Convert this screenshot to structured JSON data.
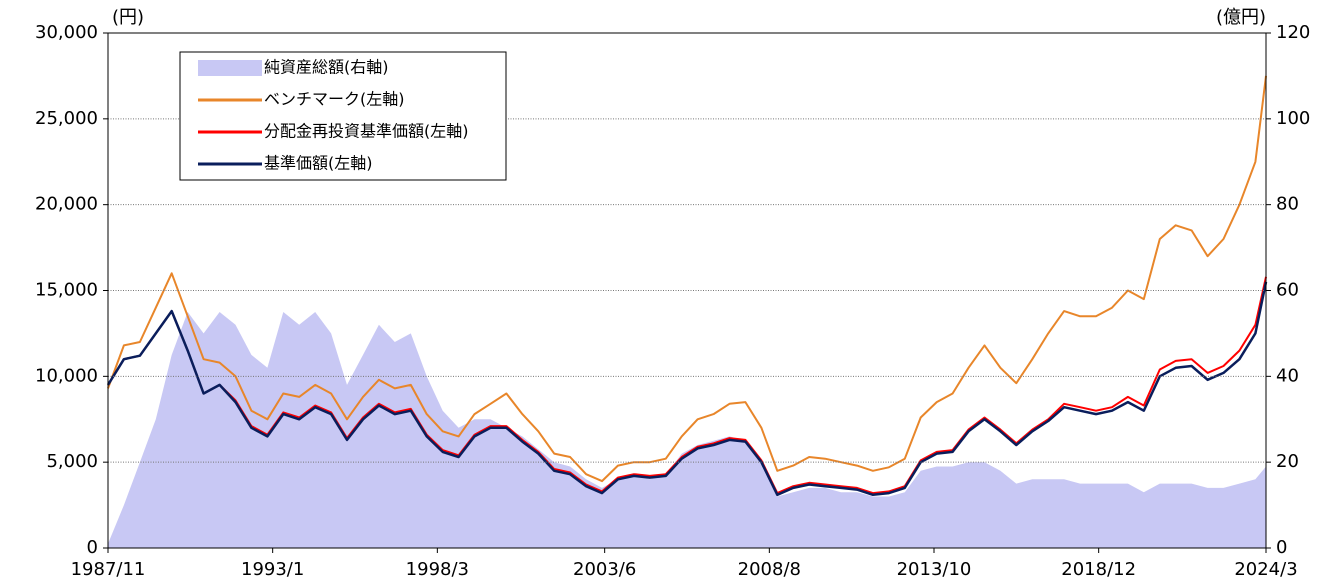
{
  "chart_data": {
    "type": "line",
    "y_unit": "(円)",
    "y2_unit": "(億円)",
    "x": [
      "1987/11",
      "1988/5",
      "1988/11",
      "1989/5",
      "1989/11",
      "1990/5",
      "1990/11",
      "1991/5",
      "1991/11",
      "1992/5",
      "1992/11",
      "1993/5",
      "1993/11",
      "1994/5",
      "1994/11",
      "1995/5",
      "1995/11",
      "1996/5",
      "1996/11",
      "1997/5",
      "1997/11",
      "1998/5",
      "1998/11",
      "1999/5",
      "1999/11",
      "2000/5",
      "2000/11",
      "2001/5",
      "2001/11",
      "2002/5",
      "2002/11",
      "2003/5",
      "2003/11",
      "2004/5",
      "2004/11",
      "2005/5",
      "2005/11",
      "2006/5",
      "2006/11",
      "2007/5",
      "2007/11",
      "2008/5",
      "2008/11",
      "2009/5",
      "2009/11",
      "2010/5",
      "2010/11",
      "2011/5",
      "2011/11",
      "2012/5",
      "2012/11",
      "2013/5",
      "2013/11",
      "2014/5",
      "2014/11",
      "2015/5",
      "2015/11",
      "2016/5",
      "2016/11",
      "2017/5",
      "2017/11",
      "2018/5",
      "2018/11",
      "2019/5",
      "2019/11",
      "2020/5",
      "2020/11",
      "2021/5",
      "2021/11",
      "2022/5",
      "2022/11",
      "2023/5",
      "2023/11",
      "2024/3"
    ],
    "xticks": [
      "1987/11",
      "1993/1",
      "1998/3",
      "2003/6",
      "2008/8",
      "2013/10",
      "2018/12",
      "2024/3"
    ],
    "ylim": [
      0,
      30000
    ],
    "yticks": [
      0,
      {
        "value": 5000,
        "label": "5,000"
      },
      {
        "value": 10000,
        "label": "10,000"
      },
      {
        "value": 15000,
        "label": "15,000"
      },
      {
        "value": 20000,
        "label": "20,000"
      },
      {
        "value": 25000,
        "label": "25,000"
      },
      {
        "value": 30000,
        "label": "30,000"
      }
    ],
    "y2lim": [
      0,
      120
    ],
    "y2ticks": [
      0,
      20,
      40,
      60,
      80,
      100,
      120
    ],
    "grid": true,
    "legend": "upper left",
    "series": [
      {
        "name": "純資産総額(右軸)",
        "style": "area",
        "axis": "y2",
        "color": "#c8c8f4",
        "values": [
          1,
          10,
          20,
          30,
          45,
          55,
          50,
          55,
          52,
          45,
          42,
          55,
          52,
          55,
          50,
          38,
          45,
          52,
          48,
          50,
          40,
          32,
          28,
          30,
          30,
          28,
          26,
          23,
          20,
          19,
          16,
          14,
          16,
          17,
          16,
          17,
          22,
          24,
          25,
          26,
          25,
          20,
          12,
          13,
          14,
          14,
          13,
          13,
          12,
          12,
          13,
          18,
          19,
          19,
          20,
          20,
          18,
          15,
          16,
          16,
          16,
          15,
          15,
          15,
          15,
          13,
          15,
          15,
          15,
          14,
          14,
          15,
          16,
          19
        ]
      },
      {
        "name": "ベンチマーク(左軸)",
        "style": "line",
        "color": "#e8862a",
        "values": [
          9300,
          11800,
          12000,
          14000,
          16000,
          13500,
          11000,
          10800,
          10000,
          8000,
          7500,
          9000,
          8800,
          9500,
          9000,
          7500,
          8800,
          9800,
          9300,
          9500,
          7800,
          6800,
          6500,
          7800,
          8400,
          9000,
          7800,
          6800,
          5500,
          5300,
          4300,
          3900,
          4800,
          5000,
          5000,
          5200,
          6500,
          7500,
          7800,
          8400,
          8500,
          7000,
          4500,
          4800,
          5300,
          5200,
          5000,
          4800,
          4500,
          4700,
          5200,
          7600,
          8500,
          9000,
          10500,
          11800,
          10500,
          9600,
          11000,
          12500,
          13800,
          13500,
          13500,
          14000,
          15000,
          14500,
          18000,
          18800,
          18500,
          17000,
          18000,
          20000,
          22500,
          27500
        ]
      },
      {
        "name": "分配金再投資基準価額(左軸)",
        "style": "line",
        "color": "#ff0000",
        "values": [
          9500,
          11000,
          11200,
          12500,
          13800,
          11500,
          9000,
          9500,
          8600,
          7100,
          6600,
          7900,
          7600,
          8300,
          7900,
          6400,
          7600,
          8400,
          7900,
          8100,
          6600,
          5700,
          5400,
          6600,
          7100,
          7100,
          6300,
          5600,
          4600,
          4400,
          3700,
          3300,
          4100,
          4300,
          4200,
          4300,
          5300,
          5900,
          6100,
          6400,
          6300,
          5100,
          3200,
          3600,
          3800,
          3700,
          3600,
          3500,
          3200,
          3300,
          3600,
          5100,
          5600,
          5700,
          6900,
          7600,
          6900,
          6100,
          6900,
          7500,
          8400,
          8200,
          8000,
          8200,
          8800,
          8300,
          10400,
          10900,
          11000,
          10200,
          10600,
          11500,
          13000,
          15800
        ]
      },
      {
        "name": "基準価額(左軸)",
        "style": "line",
        "color": "#0a1e5c",
        "values": [
          9500,
          11000,
          11200,
          12500,
          13800,
          11500,
          9000,
          9500,
          8500,
          7000,
          6500,
          7800,
          7500,
          8200,
          7800,
          6300,
          7500,
          8300,
          7800,
          8000,
          6500,
          5600,
          5300,
          6500,
          7000,
          7000,
          6200,
          5500,
          4500,
          4300,
          3600,
          3200,
          4000,
          4200,
          4100,
          4200,
          5200,
          5800,
          6000,
          6300,
          6200,
          5000,
          3100,
          3500,
          3700,
          3600,
          3500,
          3400,
          3100,
          3200,
          3500,
          5000,
          5500,
          5600,
          6800,
          7500,
          6800,
          6000,
          6800,
          7400,
          8200,
          8000,
          7800,
          8000,
          8500,
          8000,
          10000,
          10500,
          10600,
          9800,
          10200,
          11000,
          12500,
          15500
        ]
      }
    ]
  }
}
